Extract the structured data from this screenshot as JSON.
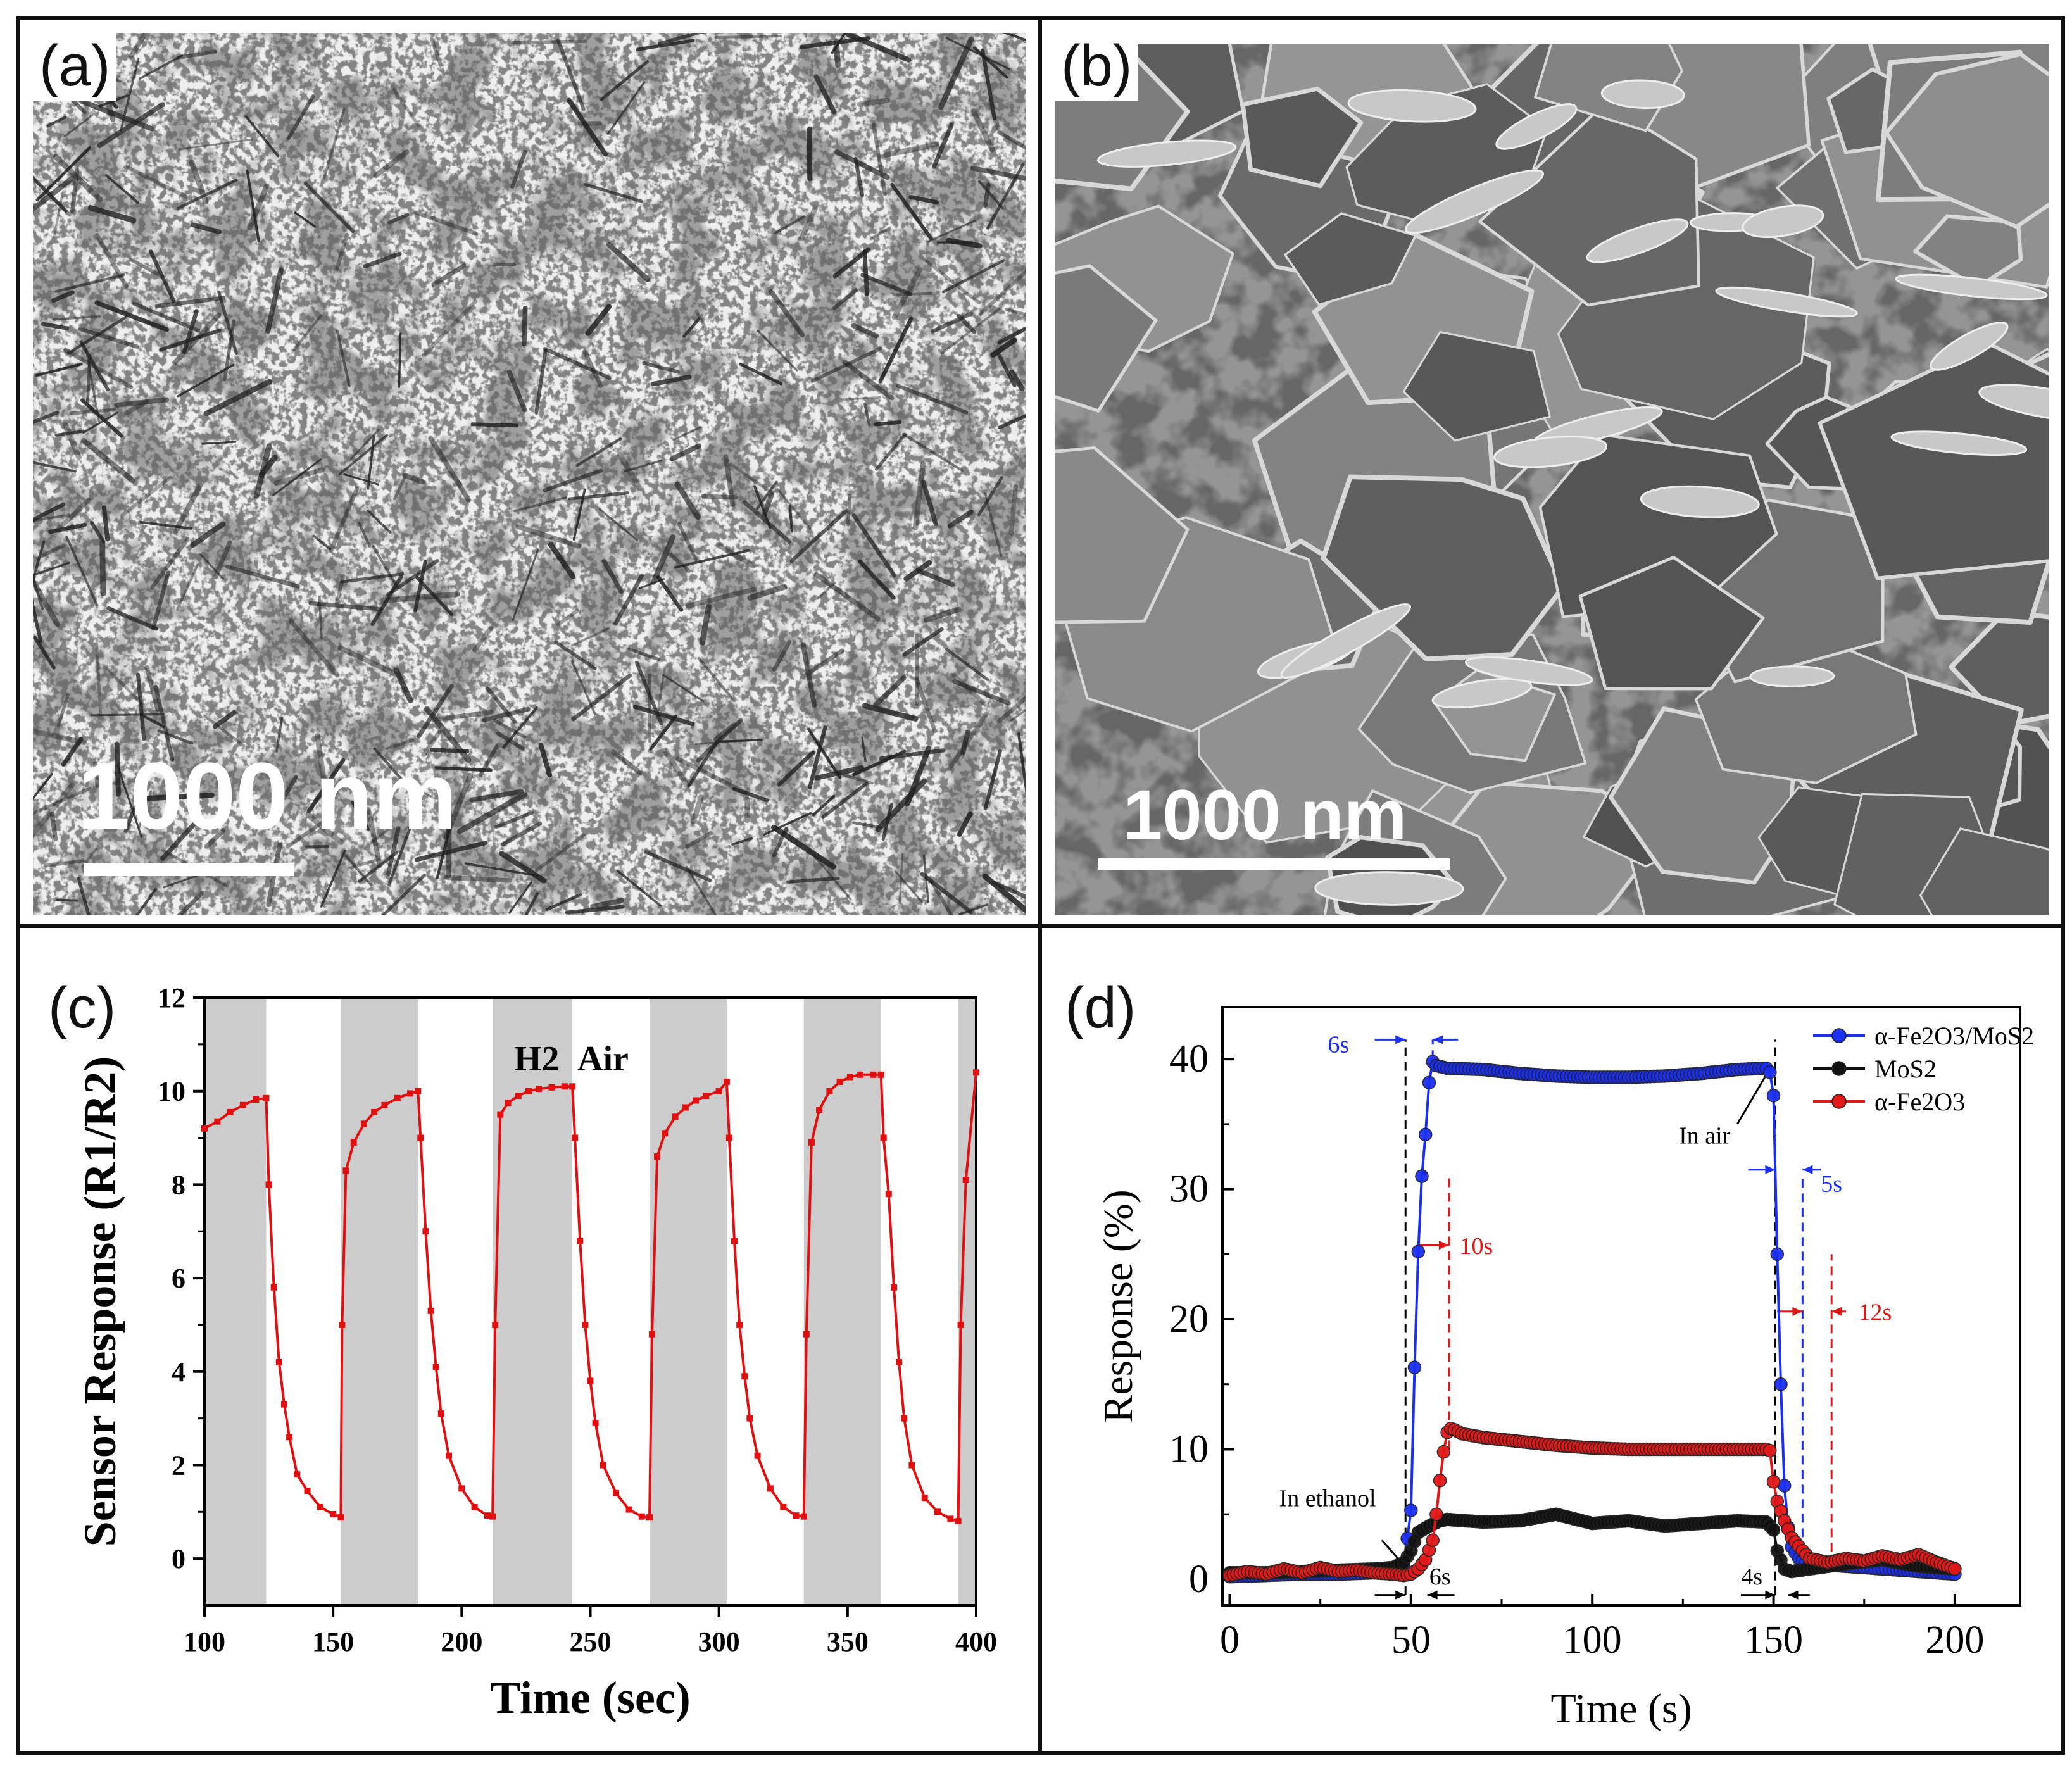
{
  "panels": {
    "a": {
      "label": "(a)",
      "scale_bar": "1000 nm"
    },
    "b": {
      "label": "(b)",
      "scale_bar": "1000 nm"
    },
    "c": {
      "label": "(c)"
    },
    "d": {
      "label": "(d)"
    }
  },
  "chart_data": [
    {
      "type": "line",
      "panel": "c",
      "xlabel": "Time (sec)",
      "ylabel": "Sensor Response (R1/R2)",
      "xlim": [
        100,
        400
      ],
      "ylim": [
        -1,
        12
      ],
      "xticks": [
        100,
        150,
        200,
        250,
        300,
        350,
        400
      ],
      "yticks": [
        0,
        2,
        4,
        6,
        8,
        10,
        12
      ],
      "annotations": {
        "h2": "H2",
        "air": "Air"
      },
      "gas_on_intervals": [
        [
          100,
          124
        ],
        [
          153,
          183
        ],
        [
          212,
          243
        ],
        [
          273,
          303
        ],
        [
          333,
          363
        ],
        [
          393,
          400
        ]
      ],
      "series": [
        {
          "color": "#e01010",
          "x": [
            100,
            105,
            110,
            115,
            120,
            124,
            125,
            127,
            129,
            131,
            133,
            136,
            140,
            145,
            150,
            153,
            153.5,
            155,
            158,
            162,
            166,
            170,
            175,
            180,
            183,
            184,
            186,
            188,
            190,
            192,
            195,
            200,
            205,
            210,
            212,
            213,
            215,
            218,
            222,
            226,
            230,
            235,
            240,
            243,
            244,
            246,
            248,
            250,
            252,
            255,
            260,
            265,
            270,
            273,
            274,
            276,
            279,
            283,
            287,
            291,
            295,
            300,
            303,
            304,
            306,
            308,
            310,
            312,
            315,
            320,
            325,
            330,
            333,
            334,
            336,
            339,
            343,
            347,
            351,
            355,
            360,
            363,
            364,
            366,
            368,
            370,
            372,
            375,
            380,
            385,
            390,
            393,
            394,
            396,
            400
          ],
          "y": [
            9.2,
            9.35,
            9.55,
            9.7,
            9.82,
            9.85,
            8.0,
            5.8,
            4.2,
            3.3,
            2.6,
            1.8,
            1.45,
            1.1,
            0.95,
            0.88,
            5.0,
            8.3,
            8.9,
            9.3,
            9.55,
            9.7,
            9.85,
            9.95,
            10.0,
            9.0,
            7.0,
            5.3,
            4.1,
            3.1,
            2.2,
            1.5,
            1.1,
            0.92,
            0.9,
            5.0,
            9.5,
            9.75,
            9.9,
            10.0,
            10.05,
            10.08,
            10.1,
            10.1,
            9.0,
            6.8,
            5.0,
            3.8,
            2.9,
            2.0,
            1.4,
            1.05,
            0.9,
            0.88,
            4.8,
            8.6,
            9.1,
            9.45,
            9.65,
            9.8,
            9.9,
            10.0,
            10.2,
            9.0,
            6.8,
            5.0,
            3.9,
            3.0,
            2.2,
            1.5,
            1.1,
            0.92,
            0.9,
            4.8,
            8.9,
            9.6,
            10.0,
            10.2,
            10.3,
            10.35,
            10.35,
            10.35,
            9.0,
            7.8,
            5.8,
            4.2,
            3.0,
            2.0,
            1.3,
            1.0,
            0.85,
            0.8,
            5.0,
            8.1,
            10.4
          ]
        }
      ]
    },
    {
      "type": "line",
      "panel": "d",
      "xlabel": "Time (s)",
      "ylabel": "Response (%)",
      "xlim": [
        -2,
        218
      ],
      "ylim": [
        -2,
        44
      ],
      "xticks": [
        0,
        50,
        100,
        150,
        200
      ],
      "yticks": [
        0,
        10,
        20,
        30,
        40
      ],
      "legend_position": "top-right",
      "annotations": {
        "in_ethanol": "In ethanol",
        "in_air": "In air",
        "t_6s_blue": "6s",
        "t_10s": "10s",
        "t_5s": "5s",
        "t_12s": "12s",
        "t_6s_black": "6s",
        "t_4s": "4s"
      },
      "series": [
        {
          "name": "α-Fe2O3/MoS2",
          "color": "#1a2ff0",
          "x": [
            0,
            10,
            20,
            30,
            40,
            45,
            48,
            50,
            51,
            52,
            53,
            54,
            55,
            56,
            57,
            60,
            70,
            80,
            90,
            100,
            110,
            120,
            130,
            140,
            148,
            149,
            150,
            151,
            152,
            153,
            154,
            155,
            157,
            160,
            170,
            180,
            190,
            200
          ],
          "y": [
            0.2,
            0.3,
            0.4,
            0.4,
            0.5,
            0.6,
            1.0,
            5.3,
            16.3,
            25.2,
            31.0,
            34.2,
            38.2,
            39.8,
            39.5,
            39.3,
            39.2,
            38.9,
            38.7,
            38.6,
            38.6,
            38.7,
            38.9,
            39.2,
            39.3,
            39.0,
            37.2,
            25.0,
            15.0,
            7.2,
            4.0,
            2.5,
            1.6,
            1.2,
            1.0,
            0.8,
            0.6,
            0.4
          ]
        },
        {
          "name": "MoS2",
          "color": "#111111",
          "x": [
            0,
            10,
            20,
            30,
            40,
            45,
            48,
            50,
            52,
            55,
            58,
            60,
            70,
            80,
            90,
            100,
            110,
            120,
            130,
            140,
            148,
            150,
            151,
            153,
            155,
            160,
            170,
            180,
            190,
            200
          ],
          "y": [
            0.5,
            0.5,
            0.6,
            0.7,
            0.8,
            0.9,
            1.3,
            2.2,
            3.6,
            4.1,
            4.5,
            4.6,
            4.4,
            4.5,
            5.0,
            4.3,
            4.5,
            4.1,
            4.3,
            4.5,
            4.4,
            3.8,
            2.2,
            0.8,
            0.6,
            0.8,
            1.2,
            1.5,
            1.0,
            0.8
          ]
        },
        {
          "name": "α-Fe2O3",
          "color": "#e01818",
          "x": [
            0,
            5,
            10,
            15,
            20,
            25,
            30,
            35,
            40,
            45,
            48,
            50,
            52,
            54,
            56,
            57,
            58,
            59,
            60,
            61,
            62,
            64,
            70,
            80,
            90,
            100,
            110,
            120,
            130,
            140,
            148,
            149,
            150,
            151,
            153,
            155,
            158,
            160,
            165,
            170,
            175,
            180,
            185,
            190,
            195,
            200
          ],
          "y": [
            0.3,
            0.6,
            0.4,
            0.8,
            0.5,
            0.9,
            0.6,
            0.7,
            0.5,
            0.4,
            0.3,
            0.4,
            0.8,
            1.5,
            3.0,
            5.0,
            7.6,
            9.8,
            11.3,
            11.6,
            11.5,
            11.2,
            10.9,
            10.6,
            10.3,
            10.1,
            10.0,
            10.0,
            10.0,
            10.0,
            10.0,
            9.9,
            7.5,
            6.0,
            4.5,
            3.2,
            2.2,
            1.6,
            1.3,
            1.6,
            1.4,
            1.8,
            1.5,
            1.9,
            1.3,
            0.8
          ]
        }
      ]
    }
  ]
}
